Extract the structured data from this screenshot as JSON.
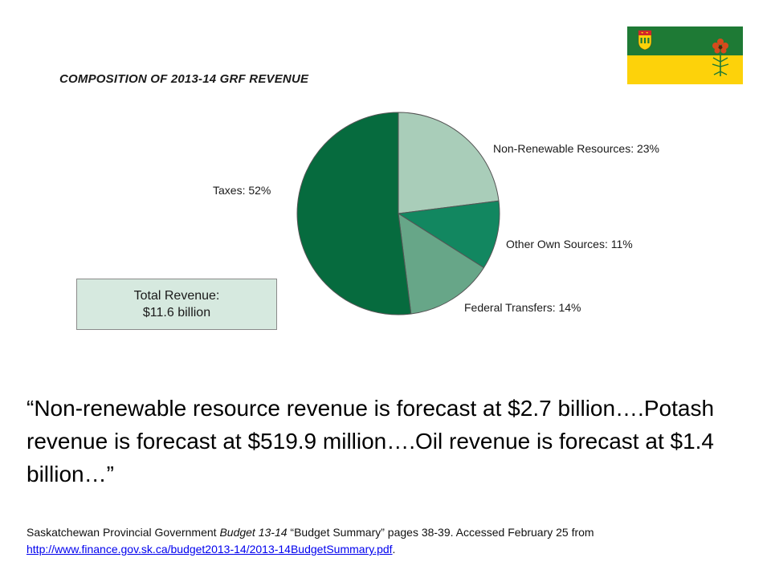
{
  "chart_data": {
    "type": "pie",
    "title": "COMPOSITION OF 2013-14 GRF REVENUE",
    "slices": [
      {
        "name": "Non-Renewable Resources",
        "value": 23,
        "label": "Non-Renewable Resources: 23%",
        "color": "#a9cdb9"
      },
      {
        "name": "Other Own Sources",
        "value": 11,
        "label": "Other Own Sources: 11%",
        "color": "#128760"
      },
      {
        "name": "Federal Transfers",
        "value": 14,
        "label": "Federal Transfers: 14%",
        "color": "#67a688"
      },
      {
        "name": "Taxes",
        "value": 52,
        "label": "Taxes: 52%",
        "color": "#066b3e"
      }
    ]
  },
  "total_box": {
    "line1": "Total Revenue:",
    "line2": "$11.6 billion"
  },
  "quote": "“Non-renewable resource revenue is forecast at $2.7 billion….Potash revenue is forecast at $519.9 million….Oil revenue is forecast at $1.4 billion…”",
  "source": {
    "prefix": "Saskatchewan Provincial Government ",
    "italic": "Budget 13-14",
    "middle": " “Budget Summary” pages 38-39. Accessed February 25 from ",
    "link": "http://www.finance.gov.sk.ca/budget2013-14/2013-14BudgetSummary.pdf",
    "suffix": "."
  },
  "colors": {
    "flag_green": "#1e7a35",
    "flag_yellow": "#fdd20a",
    "lily_red": "#d64a1c",
    "box_fill": "#d6e9df"
  },
  "icons": {
    "flag": "saskatchewan-flag-icon"
  }
}
